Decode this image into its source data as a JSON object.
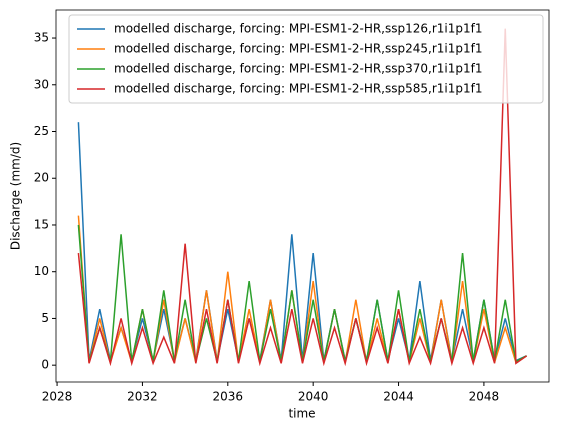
{
  "chart_data": {
    "type": "line",
    "x_label": "time",
    "y_label": "Discharge (mm/d)",
    "x": [
      2029,
      2029.5,
      2030,
      2030.5,
      2031,
      2031.5,
      2032,
      2032.5,
      2033,
      2033.5,
      2034,
      2034.5,
      2035,
      2035.5,
      2036,
      2036.5,
      2037,
      2037.5,
      2038,
      2038.5,
      2039,
      2039.5,
      2040,
      2040.5,
      2041,
      2041.5,
      2042,
      2042.5,
      2043,
      2043.5,
      2044,
      2044.5,
      2045,
      2045.5,
      2046,
      2046.5,
      2047,
      2047.5,
      2048,
      2048.5,
      2049,
      2049.5,
      2050
    ],
    "series": [
      {
        "name": "modelled discharge, forcing: MPI-ESM1-2-HR,ssp126,r1i1p1f1",
        "color": "#1f77b4",
        "values": [
          26,
          0.5,
          6,
          0.5,
          4,
          0.5,
          5,
          0.5,
          6,
          0.5,
          5,
          0.5,
          8,
          0.5,
          6,
          0.5,
          5,
          0.5,
          7,
          0.5,
          14,
          0.5,
          12,
          0.5,
          6,
          0.5,
          5,
          0.5,
          7,
          0.5,
          5,
          0.5,
          9,
          0.5,
          7,
          0.5,
          6,
          0.5,
          7,
          0.5,
          5,
          0.5,
          1
        ]
      },
      {
        "name": "modelled discharge, forcing: MPI-ESM1-2-HR,ssp245,r1i1p1f1",
        "color": "#ff7f0e",
        "values": [
          16,
          0.3,
          5,
          0.3,
          4,
          0.3,
          6,
          0.3,
          7,
          0.3,
          5,
          0.3,
          8,
          0.3,
          10,
          0.3,
          6,
          0.3,
          7,
          0.3,
          8,
          0.3,
          9,
          0.3,
          6,
          0.3,
          7,
          0.3,
          5,
          0.3,
          6,
          0.3,
          5,
          0.3,
          7,
          0.3,
          9,
          0.3,
          6,
          0.3,
          4,
          0.3,
          1
        ]
      },
      {
        "name": "modelled discharge, forcing: MPI-ESM1-2-HR,ssp370,r1i1p1f1",
        "color": "#2ca02c",
        "values": [
          15,
          0.4,
          4,
          0.4,
          14,
          0.4,
          6,
          0.4,
          8,
          0.4,
          7,
          0.4,
          5,
          0.4,
          7,
          0.4,
          9,
          0.4,
          6,
          0.4,
          8,
          0.4,
          7,
          0.4,
          6,
          0.4,
          5,
          0.4,
          7,
          0.4,
          8,
          0.4,
          6,
          0.4,
          5,
          0.4,
          12,
          0.4,
          7,
          0.4,
          7,
          0.4,
          1
        ]
      },
      {
        "name": "modelled discharge, forcing: MPI-ESM1-2-HR,ssp585,r1i1p1f1",
        "color": "#d62728",
        "values": [
          12,
          0.2,
          4,
          0.2,
          5,
          0.2,
          4,
          0.2,
          3,
          0.2,
          13,
          0.2,
          6,
          0.2,
          7,
          0.2,
          5,
          0.2,
          4,
          0.2,
          6,
          0.2,
          5,
          0.2,
          4,
          0.2,
          5,
          0.2,
          4,
          0.2,
          6,
          0.2,
          3,
          0.2,
          5,
          0.2,
          4,
          0.2,
          4,
          0.2,
          36,
          0.2,
          1
        ]
      }
    ],
    "xlim": [
      2027.95,
      2051.05
    ],
    "xticks": [
      2028,
      2032,
      2036,
      2040,
      2044,
      2048
    ],
    "ylim": [
      -1.8,
      38
    ],
    "yticks": [
      0,
      5,
      10,
      15,
      20,
      25,
      30,
      35
    ],
    "legend": "upper right"
  }
}
